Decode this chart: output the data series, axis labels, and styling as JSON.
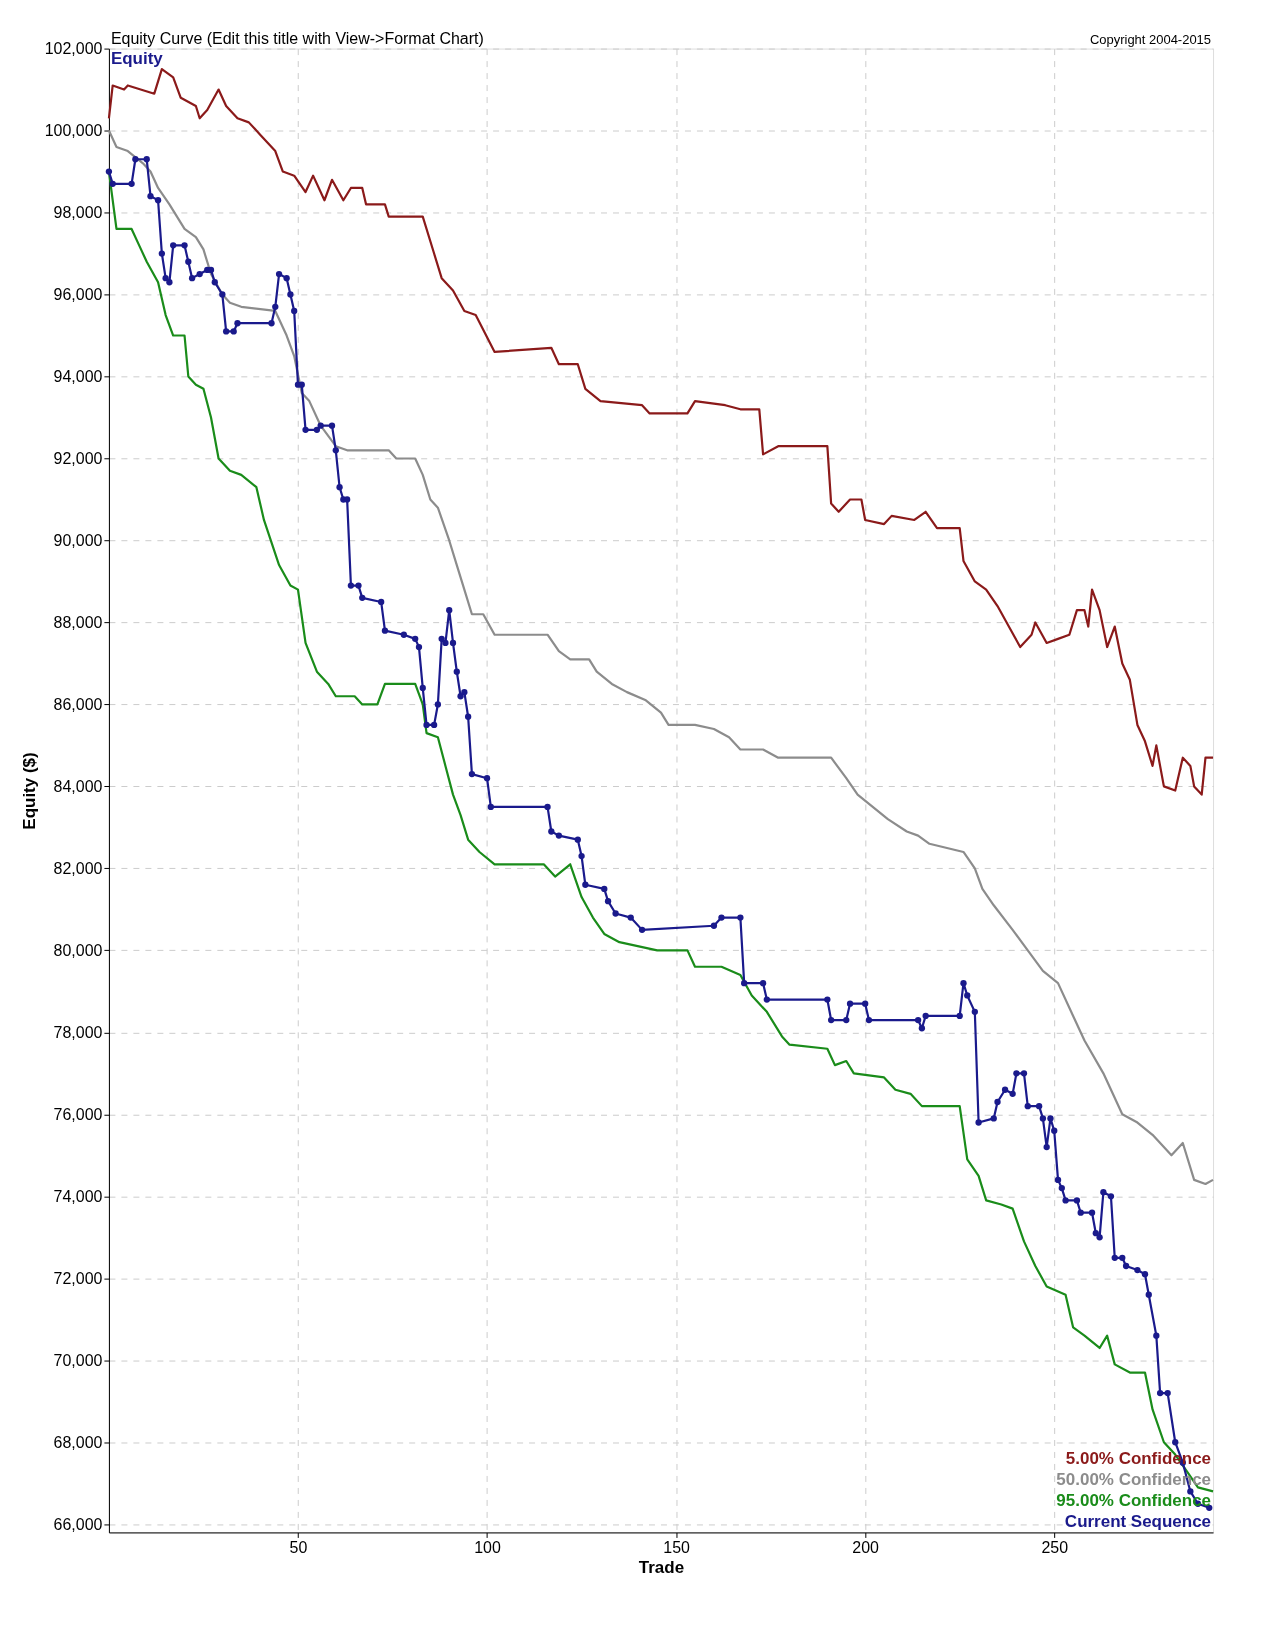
{
  "chart_data": {
    "type": "line",
    "title": "Equity Curve (Edit this title with View->Format Chart)",
    "subtitle": "Equity",
    "xlabel": "Trade",
    "ylabel": "Equity ($)",
    "annotations": [
      "Copyright 2004-2015"
    ],
    "xlim": [
      0,
      292
    ],
    "xticks": [
      50,
      100,
      150,
      200,
      250
    ],
    "ylim": [
      65800,
      102000
    ],
    "yticks": [
      {
        "value": 66000,
        "label": "66,000"
      },
      {
        "value": 68000,
        "label": "68,000"
      },
      {
        "value": 70000,
        "label": "70,000"
      },
      {
        "value": 72000,
        "label": "72,000"
      },
      {
        "value": 74000,
        "label": "74,000"
      },
      {
        "value": 76000,
        "label": "76,000"
      },
      {
        "value": 78000,
        "label": "78,000"
      },
      {
        "value": 80000,
        "label": "80,000"
      },
      {
        "value": 82000,
        "label": "82,000"
      },
      {
        "value": 84000,
        "label": "84,000"
      },
      {
        "value": 86000,
        "label": "86,000"
      },
      {
        "value": 88000,
        "label": "88,000"
      },
      {
        "value": 90000,
        "label": "90,000"
      },
      {
        "value": 92000,
        "label": "92,000"
      },
      {
        "value": 94000,
        "label": "94,000"
      },
      {
        "value": 96000,
        "label": "96,000"
      },
      {
        "value": 98000,
        "label": "98,000"
      },
      {
        "value": 100000,
        "label": "100,000"
      },
      {
        "value": 102000,
        "label": "102,000"
      }
    ],
    "grid": true,
    "legend": "bottom right",
    "line_style": "solid",
    "series": [
      {
        "name": "5.00% Confidence",
        "color": "#8b1a1a",
        "marker": "none",
        "x": [
          0,
          1,
          4,
          5,
          12,
          14,
          17,
          19,
          23,
          24,
          26,
          29,
          31,
          34,
          37,
          40,
          44,
          46,
          49,
          52,
          54,
          57,
          59,
          62,
          64,
          67,
          68,
          73,
          74,
          83,
          86,
          88,
          91,
          94,
          97,
          102,
          117,
          119,
          124,
          126,
          130,
          141,
          143,
          153,
          155,
          163,
          167,
          172,
          173,
          177,
          190,
          191,
          193,
          196,
          199,
          200,
          205,
          207,
          213,
          216,
          219,
          225,
          226,
          229,
          232,
          235,
          238,
          241,
          244,
          245,
          248,
          251,
          254,
          256,
          258,
          259,
          260,
          262,
          264,
          266,
          268,
          270,
          272,
          274,
          276,
          277,
          279,
          282,
          284,
          286,
          287,
          289,
          290,
          292
        ],
        "values": [
          100300,
          101100,
          101000,
          101100,
          100900,
          101500,
          101300,
          100800,
          100600,
          100300,
          100500,
          101000,
          100600,
          100300,
          100200,
          99900,
          99500,
          99000,
          98900,
          98500,
          98900,
          98300,
          98800,
          98300,
          98600,
          98600,
          98200,
          98200,
          97900,
          97900,
          97000,
          96400,
          96100,
          95600,
          95500,
          94600,
          94700,
          94300,
          94300,
          93700,
          93400,
          93300,
          93100,
          93100,
          93400,
          93300,
          93200,
          93200,
          92100,
          92300,
          92300,
          90900,
          90700,
          91000,
          91000,
          90500,
          90400,
          90600,
          90500,
          90700,
          90300,
          90300,
          89500,
          89000,
          88800,
          88400,
          87900,
          87400,
          87700,
          88000,
          87500,
          87600,
          87700,
          88300,
          88300,
          87900,
          88800,
          88300,
          87400,
          87900,
          87000,
          86600,
          85500,
          85100,
          84500,
          85000,
          84000,
          83900,
          84700,
          84500,
          84000,
          83800,
          84700,
          84700
        ]
      },
      {
        "name": "50.00% Confidence",
        "color": "#8c8c8c",
        "marker": "none",
        "x": [
          0,
          2,
          5,
          9,
          11,
          13,
          16,
          18,
          20,
          23,
          25,
          27,
          30,
          32,
          35,
          44,
          47,
          49,
          51,
          53,
          56,
          60,
          63,
          74,
          76,
          81,
          83,
          85,
          87,
          90,
          92,
          94,
          96,
          99,
          102,
          116,
          119,
          122,
          127,
          129,
          133,
          137,
          142,
          146,
          148,
          155,
          160,
          164,
          167,
          173,
          177,
          191,
          195,
          198,
          202,
          206,
          211,
          214,
          217,
          226,
          229,
          231,
          234,
          239,
          243,
          247,
          251,
          255,
          258,
          263,
          268,
          272,
          276,
          281,
          284,
          287,
          290,
          292
        ],
        "values": [
          100000,
          99600,
          99500,
          99200,
          99000,
          98600,
          98200,
          97900,
          97600,
          97400,
          97100,
          96500,
          96000,
          95800,
          95700,
          95600,
          95000,
          94500,
          93600,
          93400,
          92800,
          92300,
          92200,
          92200,
          92000,
          92000,
          91600,
          91000,
          90800,
          90000,
          89400,
          88800,
          88200,
          88200,
          87700,
          87700,
          87300,
          87100,
          87100,
          86800,
          86500,
          86300,
          86100,
          85800,
          85500,
          85500,
          85400,
          85200,
          84900,
          84900,
          84700,
          84700,
          84200,
          83800,
          83500,
          83200,
          82900,
          82800,
          82600,
          82400,
          82000,
          81500,
          81100,
          80500,
          80000,
          79500,
          79200,
          78400,
          77800,
          77000,
          76000,
          75800,
          75500,
          75000,
          75300,
          74400,
          74300,
          74400
        ]
      },
      {
        "name": "95.00% Confidence",
        "color": "#1a8c1a",
        "marker": "none",
        "x": [
          0,
          2,
          6,
          8,
          10,
          13,
          15,
          17,
          20,
          21,
          23,
          25,
          27,
          29,
          32,
          35,
          39,
          41,
          45,
          48,
          50,
          52,
          55,
          58,
          60,
          65,
          67,
          71,
          73,
          81,
          83,
          84,
          87,
          89,
          91,
          93,
          95,
          98,
          102,
          115,
          118,
          122,
          125,
          128,
          131,
          135,
          145,
          153,
          155,
          162,
          167,
          170,
          174,
          178,
          180,
          190,
          192,
          195,
          197,
          205,
          208,
          212,
          215,
          225,
          227,
          230,
          232,
          236,
          239,
          242,
          245,
          248,
          253,
          255,
          258,
          262,
          264,
          266,
          270,
          274,
          276,
          279,
          282,
          285,
          288,
          292
        ],
        "values": [
          99000,
          97600,
          97600,
          97200,
          96800,
          96300,
          95500,
          95000,
          95000,
          94000,
          93800,
          93700,
          93000,
          92000,
          91700,
          91600,
          91300,
          90500,
          89400,
          88900,
          88800,
          87500,
          86800,
          86500,
          86200,
          86200,
          86000,
          86000,
          86500,
          86500,
          86000,
          85300,
          85200,
          84500,
          83800,
          83300,
          82700,
          82400,
          82100,
          82100,
          81800,
          82100,
          81300,
          80800,
          80400,
          80200,
          80000,
          80000,
          79600,
          79600,
          79400,
          78900,
          78500,
          77900,
          77700,
          77600,
          77200,
          77300,
          77000,
          76900,
          76600,
          76500,
          76200,
          76200,
          74900,
          74500,
          73900,
          73800,
          73700,
          72900,
          72300,
          71800,
          71600,
          70800,
          70600,
          70300,
          70600,
          69900,
          69700,
          69700,
          68800,
          68000,
          67700,
          67300,
          66900,
          66800
        ]
      },
      {
        "name": "Current Sequence",
        "color": "#1a1a8c",
        "marker": "circle",
        "x": [
          0,
          1,
          6,
          7,
          10,
          11,
          13,
          14,
          15,
          16,
          17,
          20,
          21,
          22,
          24,
          26,
          27,
          28,
          30,
          31,
          33,
          34,
          43,
          44,
          45,
          47,
          48,
          49,
          50,
          51,
          52,
          55,
          56,
          59,
          60,
          61,
          62,
          63,
          64,
          66,
          67,
          72,
          73,
          78,
          81,
          82,
          83,
          84,
          86,
          87,
          88,
          89,
          90,
          91,
          92,
          93,
          94,
          95,
          96,
          100,
          101,
          116,
          117,
          119,
          124,
          125,
          126,
          131,
          132,
          134,
          138,
          141,
          160,
          162,
          167,
          168,
          173,
          174,
          190,
          191,
          195,
          196,
          200,
          201,
          214,
          215,
          216,
          225,
          226,
          227,
          229,
          230,
          234,
          235,
          237,
          239,
          240,
          242,
          243,
          246,
          247,
          248,
          249,
          250,
          251,
          252,
          253,
          256,
          257,
          260,
          261,
          262,
          263,
          265,
          266,
          268,
          269,
          272,
          274,
          275,
          277,
          278,
          280,
          282,
          284,
          286,
          288,
          291
        ],
        "values": [
          99000,
          98700,
          98700,
          99300,
          99300,
          98400,
          98300,
          97000,
          96400,
          96300,
          97200,
          97200,
          96800,
          96400,
          96500,
          96600,
          96600,
          96300,
          96000,
          95100,
          95100,
          95300,
          95300,
          95700,
          96500,
          96400,
          96000,
          95600,
          93800,
          93800,
          92700,
          92700,
          92800,
          92800,
          92200,
          91300,
          91000,
          91000,
          88900,
          88900,
          88600,
          88500,
          87800,
          87700,
          87600,
          87400,
          86400,
          85500,
          85500,
          86000,
          87600,
          87500,
          88300,
          87500,
          86800,
          86200,
          86300,
          85700,
          84300,
          84200,
          83500,
          83500,
          82900,
          82800,
          82700,
          82300,
          81600,
          81500,
          81200,
          80900,
          80800,
          80500,
          80600,
          80800,
          80800,
          79200,
          79200,
          78800,
          78800,
          78300,
          78300,
          78700,
          78700,
          78300,
          78300,
          78100,
          78400,
          78400,
          79200,
          78900,
          78500,
          75800,
          75900,
          76300,
          76600,
          76500,
          77000,
          77000,
          76200,
          76200,
          75900,
          75200,
          75900,
          75600,
          74400,
          74200,
          73900,
          73900,
          73600,
          73600,
          73100,
          73000,
          74100,
          74000,
          72500,
          72500,
          72300,
          72200,
          72100,
          71600,
          70600,
          69200,
          69200,
          68000,
          67500,
          66800,
          66500,
          66400
        ]
      }
    ]
  }
}
